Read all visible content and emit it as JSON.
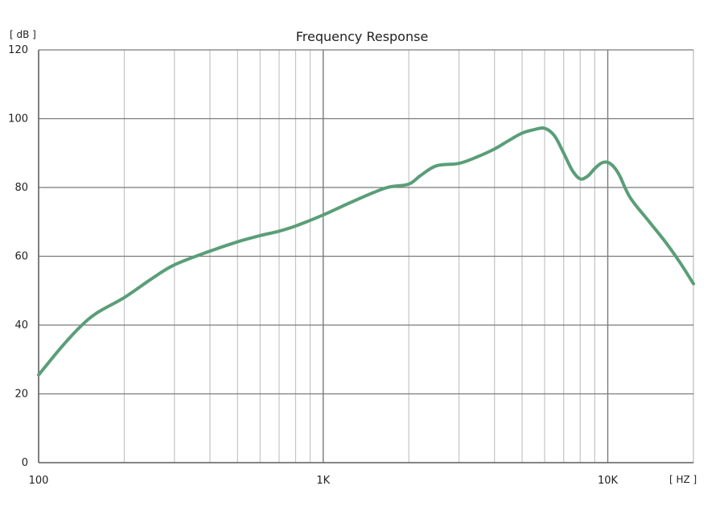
{
  "chart_data": {
    "type": "line",
    "title": "Frequency Response",
    "y_unit_label": "[ dB ]",
    "x_unit_label": "[ HZ ]",
    "x_scale": "log",
    "xlim": [
      100,
      20000
    ],
    "ylim": [
      0,
      120
    ],
    "x_ticks": [
      {
        "value": 100,
        "label": "100"
      },
      {
        "value": 1000,
        "label": "1K"
      },
      {
        "value": 10000,
        "label": "10K"
      }
    ],
    "y_ticks": [
      {
        "value": 0,
        "label": "0"
      },
      {
        "value": 20,
        "label": "20"
      },
      {
        "value": 40,
        "label": "40"
      },
      {
        "value": 60,
        "label": "60"
      },
      {
        "value": 80,
        "label": "80"
      },
      {
        "value": 100,
        "label": "100"
      },
      {
        "value": 120,
        "label": "120"
      }
    ],
    "grid": {
      "major_x": true,
      "minor_x": true,
      "y": true
    },
    "legend": "none",
    "colors": {
      "line": "#5a9e78",
      "major_grid": "#7a7a7a",
      "minor_grid": "#c4c4c4",
      "axis": "#666666"
    },
    "series": [
      {
        "x": [
          100,
          120,
          140,
          160,
          200,
          250,
          300,
          400,
          500,
          600,
          700,
          800,
          1000,
          1200,
          1500,
          1700,
          2000,
          2200,
          2500,
          3000,
          3500,
          4000,
          4500,
          5000,
          5500,
          6000,
          6500,
          7000,
          7500,
          8000,
          8500,
          9000,
          9500,
          10000,
          10500,
          11000,
          12000,
          14000,
          16000,
          18000,
          20000
        ],
        "y": [
          25.5,
          33.5,
          39.5,
          43.5,
          48,
          53.5,
          57.5,
          61.5,
          64.2,
          66,
          67.3,
          68.8,
          72,
          75,
          78.5,
          80.1,
          81,
          83.5,
          86.3,
          87,
          89,
          91.2,
          93.7,
          95.8,
          96.8,
          97.2,
          95,
          90,
          85,
          82.5,
          83.3,
          85.5,
          87.1,
          87.3,
          86,
          83.5,
          77,
          70,
          64,
          58,
          52
        ]
      }
    ]
  }
}
